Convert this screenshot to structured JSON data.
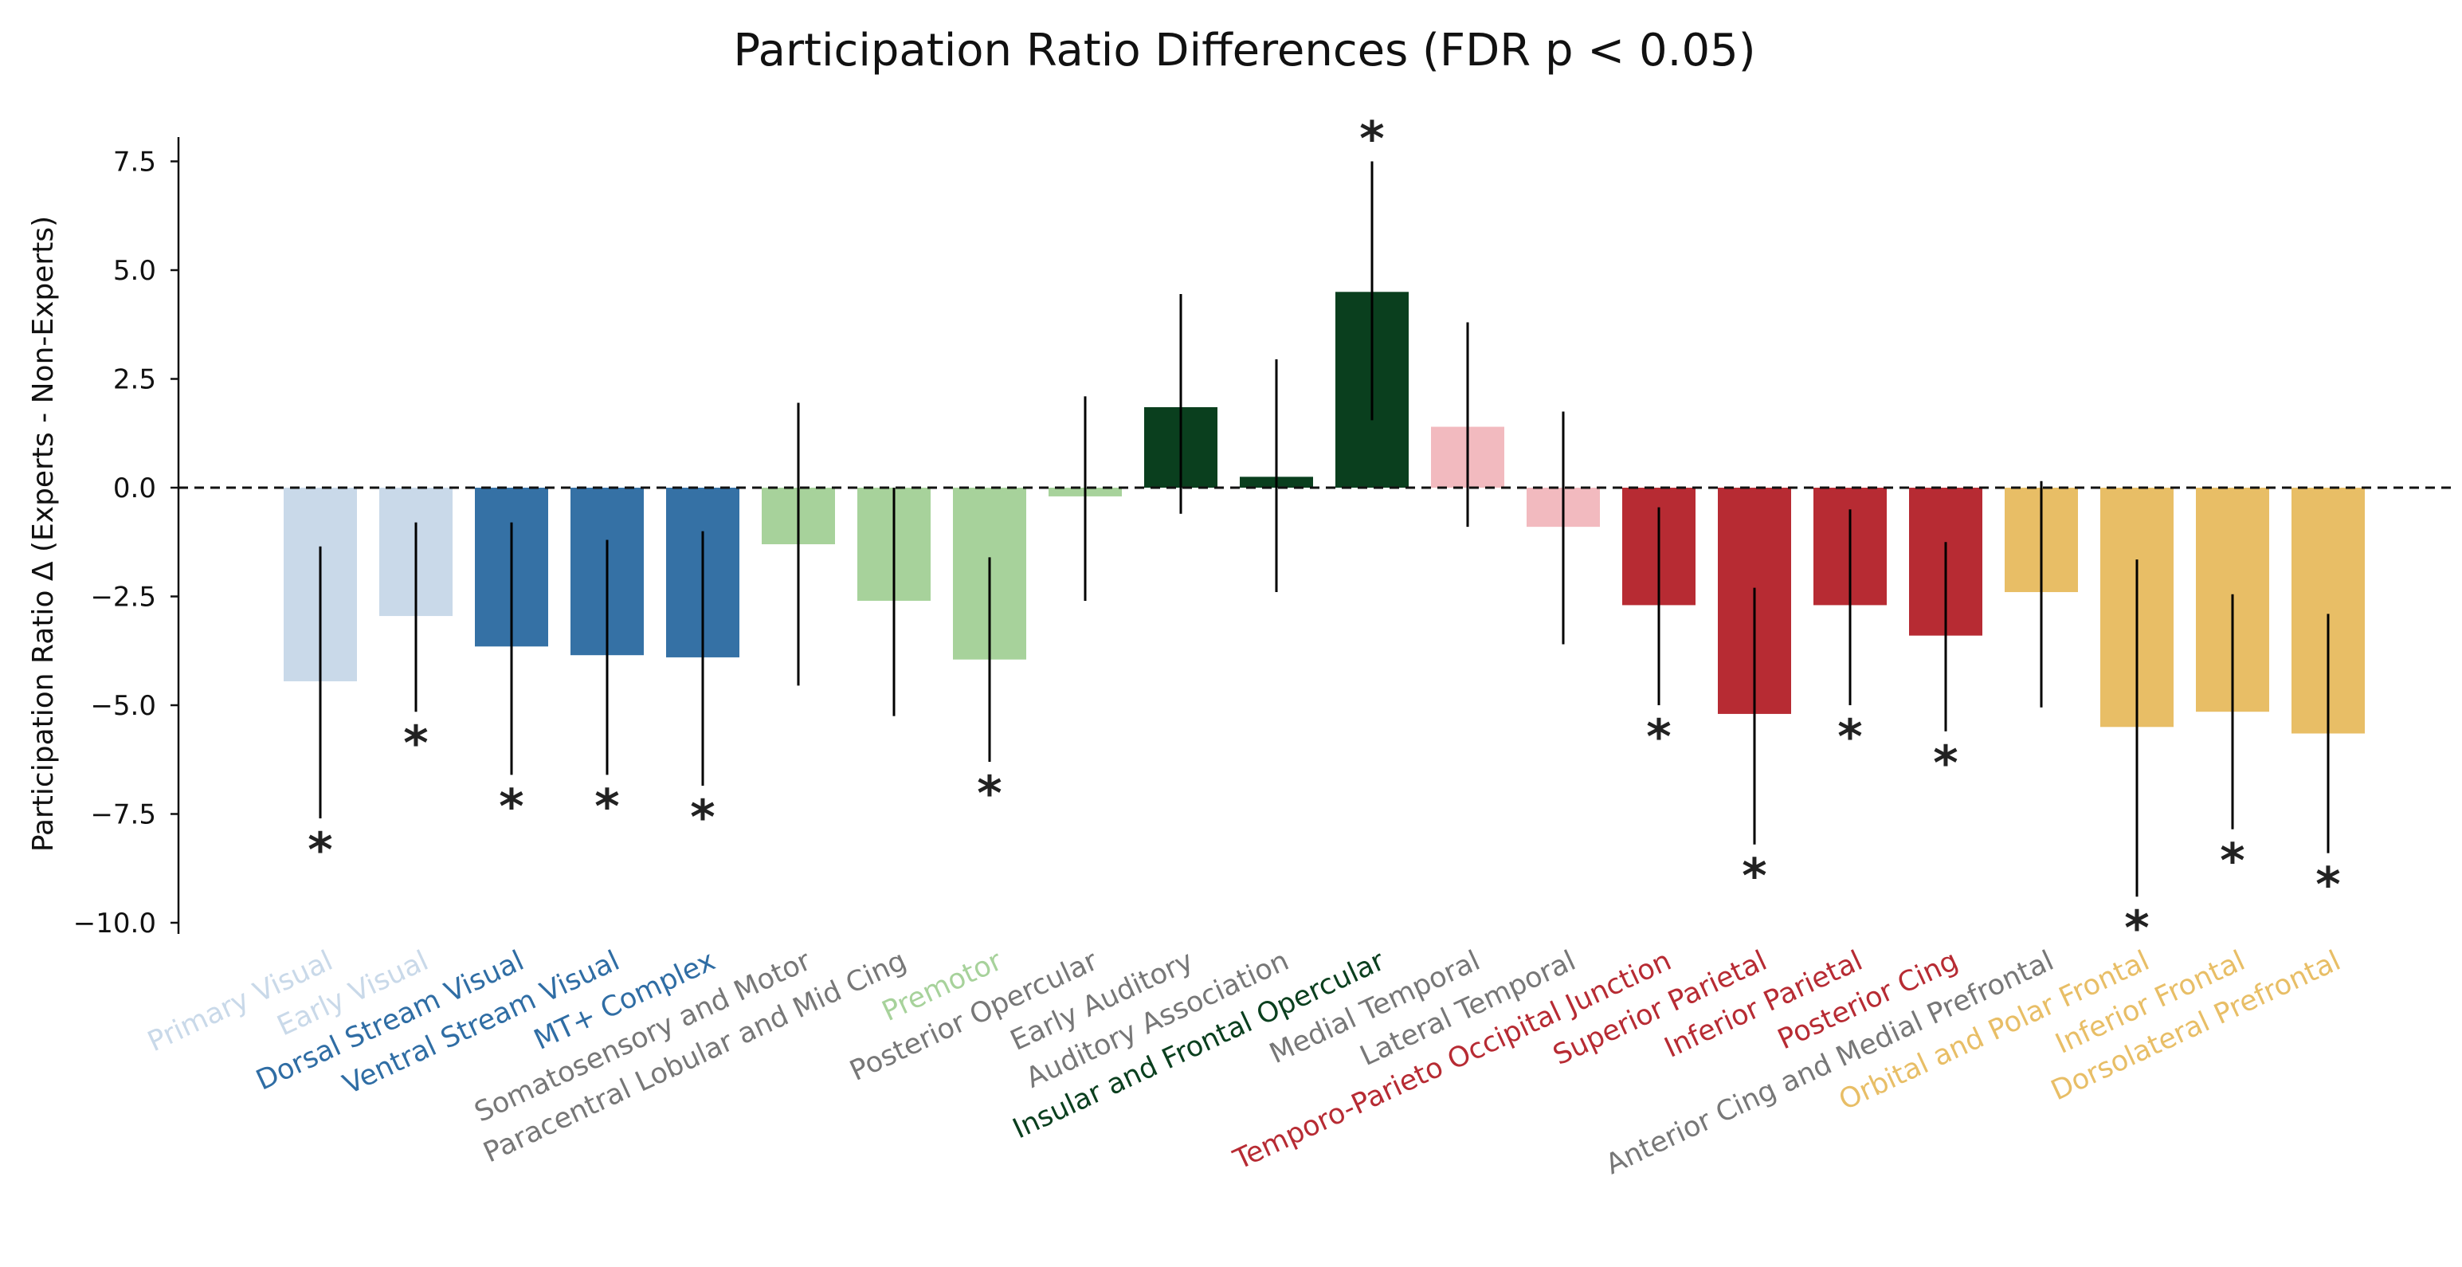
{
  "chart_data": {
    "type": "bar",
    "title": "Participation Ratio Differences (FDR p < 0.05)",
    "ylabel": "Participation Ratio Δ (Experts - Non-Experts)",
    "xlabel": "",
    "ylim": [
      -10,
      8.2
    ],
    "yticks": [
      7.5,
      5.0,
      2.5,
      0.0,
      -2.5,
      -5.0,
      -7.5,
      -10.0
    ],
    "ytick_labels": [
      "7.5",
      "5.0",
      "2.5",
      "0.0",
      "−2.5",
      "−5.0",
      "−7.5",
      "−10.0"
    ],
    "reference_line": 0,
    "categories": [
      "Primary Visual",
      "Early Visual",
      "Dorsal Stream Visual",
      "Ventral Stream Visual",
      "MT+ Complex",
      "Somatosensory and Motor",
      "Paracentral Lobular and Mid Cing",
      "Premotor",
      "Posterior Opercular",
      "Early Auditory",
      "Auditory Association",
      "Insular and Frontal Opercular",
      "Medial Temporal",
      "Lateral Temporal",
      "Temporo-Parieto Occipital Junction",
      "Superior Parietal",
      "Inferior Parietal",
      "Posterior Cing",
      "Anterior Cing and Medial Prefrontal",
      "Orbital and Polar Frontal",
      "Inferior Frontal",
      "Dorsolateral Prefrontal"
    ],
    "values": [
      -4.45,
      -2.95,
      -3.65,
      -3.85,
      -3.9,
      -1.3,
      -2.6,
      -3.95,
      -0.2,
      1.85,
      0.25,
      4.5,
      1.4,
      -0.9,
      -2.7,
      -5.2,
      -2.7,
      -3.4,
      -2.4,
      -5.5,
      -5.15,
      -5.65
    ],
    "err_low": [
      -7.6,
      -5.15,
      -6.6,
      -6.6,
      -6.85,
      -4.55,
      -5.25,
      -6.3,
      -2.6,
      -0.6,
      -2.4,
      1.55,
      -0.9,
      -3.6,
      -5.0,
      -8.2,
      -5.0,
      -5.6,
      -5.05,
      -9.4,
      -7.85,
      -8.4
    ],
    "err_high": [
      -1.35,
      -0.8,
      -0.8,
      -1.2,
      -1.0,
      1.95,
      0.0,
      -1.6,
      2.1,
      4.45,
      2.95,
      7.5,
      3.8,
      1.75,
      -0.45,
      -2.3,
      -0.5,
      -1.25,
      0.15,
      -1.65,
      -2.45,
      -2.9
    ],
    "significant": [
      true,
      true,
      true,
      true,
      true,
      false,
      false,
      true,
      false,
      false,
      false,
      true,
      false,
      false,
      true,
      true,
      true,
      true,
      false,
      true,
      true,
      true
    ],
    "significance_marker": "*",
    "bar_colors": [
      "#c9d9e9",
      "#c9d9e9",
      "#3571a5",
      "#3571a5",
      "#3571a5",
      "#a7d29b",
      "#a7d29b",
      "#a7d29b",
      "#a7d29b",
      "#0a3f1e",
      "#0a3f1e",
      "#0a3f1e",
      "#f2babf",
      "#f2babf",
      "#b72b33",
      "#b72b33",
      "#b72b33",
      "#b72b33",
      "#e8be66",
      "#e8be66",
      "#e8be66",
      "#e8be66"
    ],
    "label_colors": [
      "#c9d9e9",
      "#c9d9e9",
      "#2f6da4",
      "#2f6da4",
      "#2f6da4",
      "#777777",
      "#777777",
      "#a7d29b",
      "#777777",
      "#777777",
      "#777777",
      "#0a3f1e",
      "#777777",
      "#777777",
      "#b72b33",
      "#b72b33",
      "#b72b33",
      "#b72b33",
      "#777777",
      "#e8be66",
      "#e8be66",
      "#e8be66"
    ],
    "error_bar_color": "#000000",
    "grid": false,
    "legend": "none"
  }
}
